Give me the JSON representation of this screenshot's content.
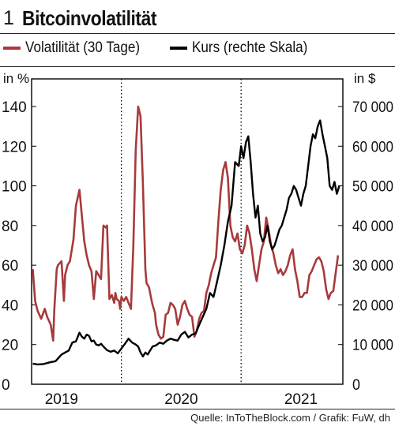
{
  "header": {
    "number": "1",
    "title": "Bitcoinvolatilität"
  },
  "colors": {
    "volatility": "#a73a3c",
    "price": "#000000",
    "grid": "#000000"
  },
  "legend": {
    "volatility_label": "Volatilität (30 Tage)",
    "price_label": "Kurs (rechte Skala)"
  },
  "footer": {
    "source": "Quelle: InToTheBlock.com / Grafik: FuW, dh"
  },
  "chart_data": {
    "type": "line",
    "title": "Bitcoinvolatilität",
    "left_unit": "in %",
    "right_unit": "in $",
    "ylim_left": [
      0,
      140
    ],
    "ylim_right": [
      0,
      70000
    ],
    "xlim": [
      2018.75,
      2021.35
    ],
    "left_ticks": [
      "0",
      "20",
      "40",
      "60",
      "80",
      "100",
      "120",
      "140"
    ],
    "right_ticks": [
      "0",
      "10 000",
      "20 000",
      "30 000",
      "40 000",
      "50 000",
      "60 000",
      "70 000"
    ],
    "x_ticks": [
      "2019",
      "2020",
      "2021"
    ],
    "grid": "vertical dotted lines at year boundaries",
    "legend_position": "top",
    "series": [
      {
        "name": "Volatilität (30 Tage)",
        "axis": "left",
        "x": [
          2018.76,
          2018.78,
          2018.8,
          2018.83,
          2018.86,
          2018.88,
          2018.91,
          2018.93,
          2018.94,
          2018.96,
          2018.97,
          2019.0,
          2019.02,
          2019.03,
          2019.05,
          2019.07,
          2019.1,
          2019.12,
          2019.15,
          2019.17,
          2019.19,
          2019.21,
          2019.23,
          2019.25,
          2019.27,
          2019.29,
          2019.31,
          2019.33,
          2019.35,
          2019.37,
          2019.38,
          2019.4,
          2019.42,
          2019.44,
          2019.45,
          2019.46,
          2019.48,
          2019.49,
          2019.5,
          2019.52,
          2019.54,
          2019.56,
          2019.58,
          2019.6,
          2019.62,
          2019.64,
          2019.66,
          2019.68,
          2019.7,
          2019.71,
          2019.73,
          2019.75,
          2019.76,
          2019.78,
          2019.79,
          2019.81,
          2019.83,
          2019.85,
          2019.87,
          2019.89,
          2019.91,
          2019.93,
          2019.95,
          2019.97,
          2019.99,
          2020.01,
          2020.03,
          2020.05,
          2020.07,
          2020.09,
          2020.11,
          2020.13,
          2020.15,
          2020.17,
          2020.19,
          2020.21,
          2020.23,
          2020.25,
          2020.27,
          2020.29,
          2020.31,
          2020.33,
          2020.35,
          2020.37,
          2020.39,
          2020.41,
          2020.43,
          2020.45,
          2020.47,
          2020.49,
          2020.51,
          2020.53,
          2020.55,
          2020.57,
          2020.59,
          2020.61,
          2020.63,
          2020.65,
          2020.67,
          2020.69,
          2020.71,
          2020.73,
          2020.75,
          2020.77,
          2020.79,
          2020.81,
          2020.83,
          2020.85,
          2020.87,
          2020.89,
          2020.91,
          2020.93,
          2020.95,
          2020.97,
          2020.99,
          2021.01,
          2021.03,
          2021.05,
          2021.07,
          2021.09,
          2021.11,
          2021.13,
          2021.15,
          2021.17,
          2021.19,
          2021.21,
          2021.23,
          2021.25,
          2021.27,
          2021.29,
          2021.31
        ],
        "y": [
          58,
          42,
          37,
          33,
          38,
          34,
          30,
          22,
          38,
          58,
          60,
          62,
          42,
          55,
          60,
          62,
          73,
          90,
          98,
          85,
          72,
          65,
          60,
          57,
          43,
          57,
          55,
          53,
          80,
          79,
          80,
          43,
          45,
          41,
          46,
          43,
          42,
          38,
          44,
          42,
          44,
          41,
          38,
          70,
          118,
          140,
          135,
          101,
          58,
          51,
          49,
          43,
          40,
          36,
          30,
          25,
          23,
          24,
          35,
          36,
          41,
          40,
          38,
          30,
          34,
          40,
          42,
          38,
          35,
          34,
          24,
          27,
          33,
          36,
          37,
          46,
          50,
          56,
          60,
          64,
          82,
          98,
          108,
          112,
          104,
          80,
          74,
          72,
          76,
          68,
          66,
          70,
          80,
          76,
          68,
          58,
          52,
          60,
          68,
          72,
          84,
          78,
          70,
          66,
          60,
          56,
          58,
          55,
          57,
          60,
          65,
          68,
          58,
          52,
          44,
          44,
          46,
          46,
          55,
          57,
          60,
          63,
          64,
          62,
          57,
          48,
          43,
          46,
          47,
          56,
          65
        ],
        "color": "#a73a3c"
      },
      {
        "name": "Kurs (rechte Skala)",
        "axis": "right",
        "x": [
          2018.76,
          2018.8,
          2018.85,
          2018.9,
          2018.95,
          2019.0,
          2019.03,
          2019.06,
          2019.09,
          2019.12,
          2019.15,
          2019.17,
          2019.19,
          2019.21,
          2019.23,
          2019.25,
          2019.27,
          2019.29,
          2019.31,
          2019.33,
          2019.35,
          2019.38,
          2019.41,
          2019.44,
          2019.47,
          2019.5,
          2019.53,
          2019.56,
          2019.59,
          2019.62,
          2019.64,
          2019.66,
          2019.68,
          2019.7,
          2019.72,
          2019.74,
          2019.76,
          2019.79,
          2019.82,
          2019.85,
          2019.88,
          2019.91,
          2019.94,
          2019.97,
          2020.0,
          2020.03,
          2020.06,
          2020.09,
          2020.12,
          2020.15,
          2020.18,
          2020.21,
          2020.24,
          2020.27,
          2020.3,
          2020.33,
          2020.36,
          2020.39,
          2020.42,
          2020.45,
          2020.48,
          2020.5,
          2020.52,
          2020.54,
          2020.56,
          2020.58,
          2020.6,
          2020.62,
          2020.64,
          2020.66,
          2020.68,
          2020.7,
          2020.72,
          2020.74,
          2020.76,
          2020.78,
          2020.8,
          2020.82,
          2020.84,
          2020.86,
          2020.88,
          2020.9,
          2020.92,
          2020.94,
          2020.96,
          2020.98,
          2021.0,
          2021.02,
          2021.04,
          2021.06,
          2021.08,
          2021.1,
          2021.12,
          2021.14,
          2021.16,
          2021.18,
          2021.2,
          2021.22,
          2021.24,
          2021.26,
          2021.28,
          2021.3,
          2021.32
        ],
        "y": [
          5200,
          5000,
          5100,
          5500,
          5800,
          7500,
          8000,
          8500,
          10500,
          10800,
          13000,
          12000,
          11500,
          12500,
          12200,
          10800,
          11000,
          10000,
          9800,
          10200,
          9500,
          8600,
          8200,
          8500,
          7800,
          9000,
          10200,
          11500,
          10500,
          10000,
          9500,
          8000,
          7000,
          8000,
          7500,
          8500,
          9500,
          9800,
          10500,
          10200,
          11000,
          11500,
          11200,
          11000,
          12500,
          13200,
          11800,
          12500,
          12800,
          15000,
          17000,
          19000,
          23000,
          22000,
          26000,
          30000,
          35000,
          41000,
          45000,
          56000,
          55000,
          60000,
          57000,
          61000,
          62500,
          56000,
          48000,
          42000,
          45000,
          38000,
          36000,
          37000,
          40000,
          36000,
          34000,
          35000,
          37000,
          39000,
          40000,
          42000,
          44000,
          47000,
          48000,
          50000,
          49000,
          47000,
          45000,
          48000,
          50000,
          55000,
          60000,
          63000,
          62000,
          65000,
          66500,
          63000,
          60000,
          57000,
          50000,
          49000,
          51000,
          48000,
          50000
        ],
        "color": "#000000"
      }
    ]
  }
}
